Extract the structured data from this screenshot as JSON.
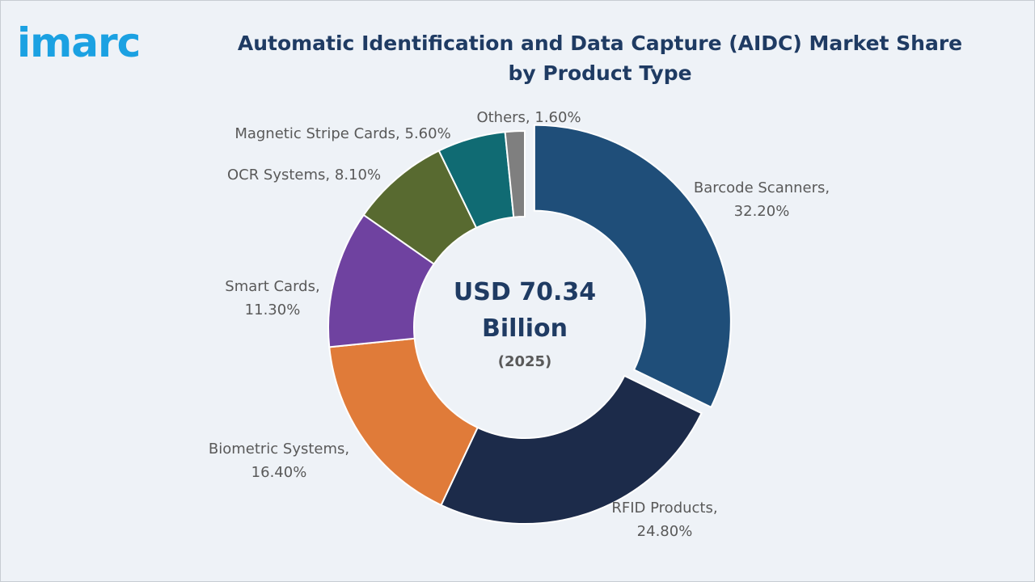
{
  "brand": {
    "logo_text": "imarc",
    "logo_color": "#1ba1e2"
  },
  "chart_data": {
    "type": "pie",
    "variant": "donut",
    "title": "Automatic Identification and Data Capture (AIDC) Market Share by Product Type",
    "center_label_line1": "USD 70.34",
    "center_label_line2": "Billion",
    "center_label_year": "(2025)",
    "unit": "%",
    "exploded_slice": "Barcode Scanners",
    "slices": [
      {
        "name": "Barcode Scanners",
        "value": 32.2,
        "label_line1": "Barcode Scanners,",
        "label_line2": "32.20%",
        "color": "#1f4e79"
      },
      {
        "name": "RFID Products",
        "value": 24.8,
        "label_line1": "RFID Products,",
        "label_line2": "24.80%",
        "color": "#1c2b4a"
      },
      {
        "name": "Biometric Systems",
        "value": 16.4,
        "label_line1": "Biometric Systems,",
        "label_line2": "16.40%",
        "color": "#e07b39"
      },
      {
        "name": "Smart Cards",
        "value": 11.3,
        "label_line1": "Smart Cards,",
        "label_line2": "11.30%",
        "color": "#6f42a0"
      },
      {
        "name": "OCR Systems",
        "value": 8.1,
        "label_line1": "OCR Systems, 8.10%",
        "label_line2": "",
        "color": "#586a30"
      },
      {
        "name": "Magnetic Stripe Cards",
        "value": 5.6,
        "label_line1": "Magnetic Stripe Cards, 5.60%",
        "label_line2": "",
        "color": "#106b73"
      },
      {
        "name": "Others",
        "value": 1.6,
        "label_line1": "Others, 1.60%",
        "label_line2": "",
        "color": "#7f7f7f"
      }
    ]
  }
}
